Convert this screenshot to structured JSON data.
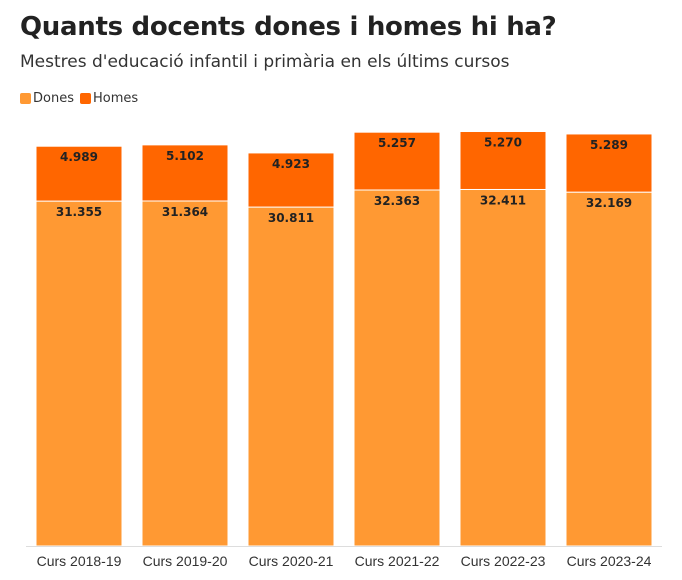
{
  "chart_data": {
    "type": "bar",
    "stacked": true,
    "title": "Quants docents dones i homes hi ha?",
    "subtitle": "Mestres d'educació infantil i primària en els últims cursos",
    "categories": [
      "Curs 2018-19",
      "Curs 2019-20",
      "Curs 2020-21",
      "Curs 2021-22",
      "Curs 2022-23",
      "Curs 2023-24"
    ],
    "series": [
      {
        "name": "Dones",
        "color": "#ff9933",
        "values": [
          31355,
          31364,
          30811,
          32363,
          32411,
          32169
        ],
        "labels": [
          "31.355",
          "31.364",
          "30.811",
          "32.363",
          "32.411",
          "32.169"
        ]
      },
      {
        "name": "Homes",
        "color": "#ff6600",
        "values": [
          4989,
          5102,
          4923,
          5257,
          5270,
          5289
        ],
        "labels": [
          "4.989",
          "5.102",
          "4.923",
          "5.257",
          "5.270",
          "5.289"
        ]
      }
    ],
    "xlabel": "",
    "ylabel": "",
    "ylim": [
      0,
      40000
    ],
    "grid": false,
    "legend_position": "top-left"
  }
}
